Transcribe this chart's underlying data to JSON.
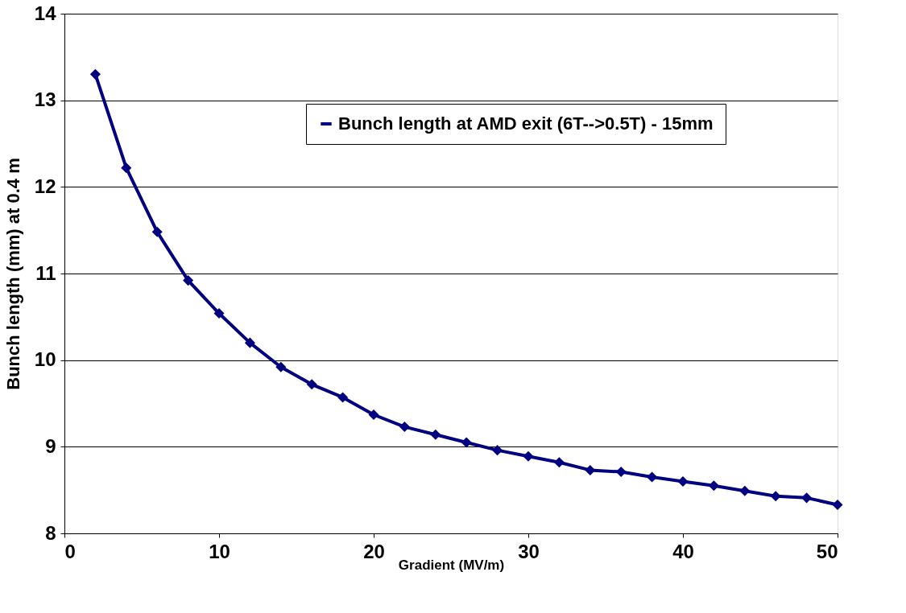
{
  "chart_data": {
    "type": "line",
    "xlabel": "Gradient (MV/m)",
    "ylabel": "Bunch length (mm) at 0.4 m",
    "x": [
      2,
      4,
      6,
      8,
      10,
      12,
      14,
      16,
      18,
      20,
      22,
      24,
      26,
      28,
      30,
      32,
      34,
      36,
      38,
      40,
      42,
      44,
      46,
      48,
      50
    ],
    "series": [
      {
        "name": "Bunch length at AMD exit (6T-->0.5T) - 15mm",
        "color": "#000080",
        "values": [
          13.3,
          12.22,
          11.48,
          10.92,
          10.54,
          10.2,
          9.92,
          9.72,
          9.57,
          9.37,
          9.23,
          9.14,
          9.05,
          8.96,
          8.89,
          8.82,
          8.73,
          8.71,
          8.65,
          8.6,
          8.55,
          8.49,
          8.43,
          8.41,
          8.33
        ]
      }
    ],
    "xlim": [
      0,
      50
    ],
    "xticks": [
      0,
      10,
      20,
      30,
      40,
      50
    ],
    "ylim": [
      8,
      14
    ],
    "yticks": [
      8,
      9,
      10,
      11,
      12,
      13,
      14
    ],
    "grid": "y",
    "legend": "top right",
    "marker": "diamond",
    "line_style": "solid"
  }
}
